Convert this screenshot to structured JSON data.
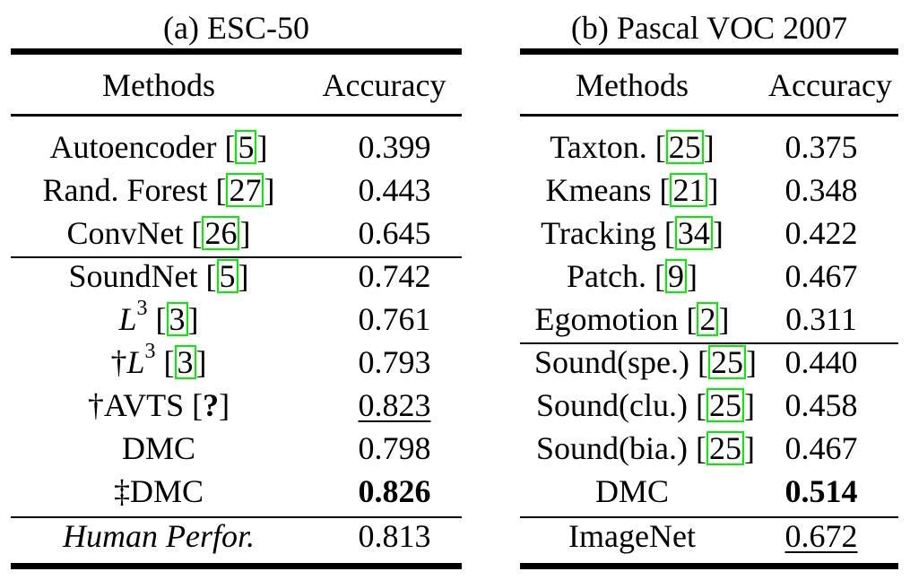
{
  "panel_a": {
    "caption": "(a) ESC-50",
    "headers": {
      "methods": "Methods",
      "accuracy": "Accuracy"
    },
    "rows": [
      {
        "name": "Autoencoder [",
        "cite": "5",
        "close": "]",
        "value": "0.399"
      },
      {
        "name": "Rand. Forest [",
        "cite": "27",
        "close": "]",
        "value": "0.443"
      },
      {
        "name": "ConvNet [",
        "cite": "26",
        "close": "]",
        "value": "0.645"
      },
      {
        "name": "SoundNet [",
        "cite": "5",
        "close": "]",
        "value": "0.742"
      },
      {
        "pre": "",
        "var": "L",
        "sup": "3",
        "post": " [",
        "cite": "3",
        "close": "]",
        "value": "0.761"
      },
      {
        "pre": "†",
        "var": "L",
        "sup": "3",
        "post": " [",
        "cite": "3",
        "close": "]",
        "value": "0.793"
      },
      {
        "name": "†AVTS [",
        "cite_plain": "?",
        "close": "]",
        "value": "0.823"
      },
      {
        "name": "DMC",
        "value": "0.798"
      },
      {
        "name": "‡DMC",
        "value": "0.826"
      },
      {
        "name": "Human Perfor.",
        "value": "0.813"
      }
    ]
  },
  "panel_b": {
    "caption": "(b) Pascal VOC 2007",
    "headers": {
      "methods": "Methods",
      "accuracy": "Accuracy"
    },
    "rows": [
      {
        "name": "Taxton. [",
        "cite": "25",
        "close": "]",
        "value": "0.375"
      },
      {
        "name": "Kmeans [",
        "cite": "21",
        "close": "]",
        "value": "0.348"
      },
      {
        "name": "Tracking [",
        "cite": "34",
        "close": "]",
        "value": "0.422"
      },
      {
        "name": "Patch. [",
        "cite": "9",
        "close": "]",
        "value": "0.467"
      },
      {
        "name": "Egomotion [",
        "cite": "2",
        "close": "]",
        "value": "0.311"
      },
      {
        "name": "Sound(spe.) [",
        "cite": "25",
        "close": "]",
        "value": "0.440"
      },
      {
        "name": "Sound(clu.) [",
        "cite": "25",
        "close": "]",
        "value": "0.458"
      },
      {
        "name": "Sound(bia.) [",
        "cite": "25",
        "close": "]",
        "value": "0.467"
      },
      {
        "name": "DMC",
        "value": "0.514"
      },
      {
        "name": "ImageNet",
        "value": "0.672"
      }
    ]
  }
}
